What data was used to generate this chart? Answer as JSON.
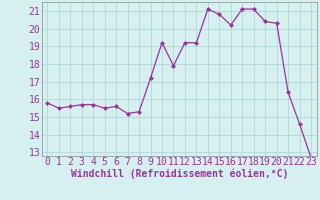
{
  "x": [
    0,
    1,
    2,
    3,
    4,
    5,
    6,
    7,
    8,
    9,
    10,
    11,
    12,
    13,
    14,
    15,
    16,
    17,
    18,
    19,
    20,
    21,
    22,
    23
  ],
  "y": [
    15.8,
    15.5,
    15.6,
    15.7,
    15.7,
    15.5,
    15.6,
    15.2,
    15.3,
    17.2,
    19.2,
    17.9,
    19.2,
    19.2,
    21.1,
    20.8,
    20.2,
    21.1,
    21.1,
    20.4,
    20.3,
    16.4,
    14.6,
    12.7
  ],
  "xlabel": "Windchill (Refroidissement éolien,°C)",
  "ylim": [
    12.8,
    21.5
  ],
  "xlim": [
    -0.5,
    23.5
  ],
  "yticks": [
    13,
    14,
    15,
    16,
    17,
    18,
    19,
    20,
    21
  ],
  "xticks": [
    0,
    1,
    2,
    3,
    4,
    5,
    6,
    7,
    8,
    9,
    10,
    11,
    12,
    13,
    14,
    15,
    16,
    17,
    18,
    19,
    20,
    21,
    22,
    23
  ],
  "line_color": "#993399",
  "marker_color": "#993399",
  "bg_color": "#d6f0f0",
  "grid_color": "#b0d8d8",
  "text_color": "#993399",
  "tick_fontsize": 7,
  "xlabel_fontsize": 7
}
